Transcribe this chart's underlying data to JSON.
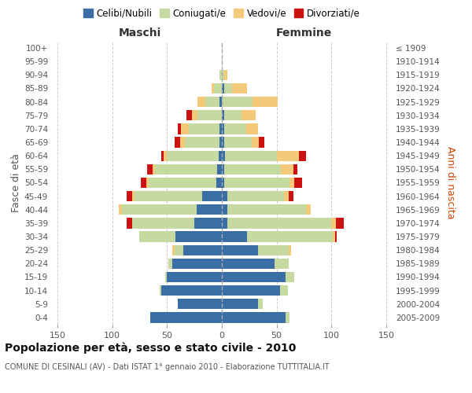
{
  "age_groups": [
    "0-4",
    "5-9",
    "10-14",
    "15-19",
    "20-24",
    "25-29",
    "30-34",
    "35-39",
    "40-44",
    "45-49",
    "50-54",
    "55-59",
    "60-64",
    "65-69",
    "70-74",
    "75-79",
    "80-84",
    "85-89",
    "90-94",
    "95-99",
    "100+"
  ],
  "birth_years": [
    "2005-2009",
    "2000-2004",
    "1995-1999",
    "1990-1994",
    "1985-1989",
    "1980-1984",
    "1975-1979",
    "1970-1974",
    "1965-1969",
    "1960-1964",
    "1955-1959",
    "1950-1954",
    "1945-1949",
    "1940-1944",
    "1935-1939",
    "1930-1934",
    "1925-1929",
    "1920-1924",
    "1915-1919",
    "1910-1914",
    "≤ 1909"
  ],
  "males": {
    "celibe": [
      65,
      40,
      55,
      50,
      45,
      35,
      42,
      25,
      23,
      18,
      5,
      4,
      3,
      2,
      2,
      0,
      2,
      0,
      0,
      0,
      0
    ],
    "coniugato": [
      0,
      0,
      2,
      2,
      4,
      8,
      33,
      57,
      68,
      62,
      62,
      57,
      47,
      32,
      28,
      22,
      13,
      7,
      2,
      0,
      0
    ],
    "vedovo": [
      0,
      0,
      0,
      0,
      0,
      2,
      0,
      0,
      3,
      2,
      2,
      2,
      3,
      4,
      7,
      5,
      7,
      2,
      0,
      0,
      0
    ],
    "divorziato": [
      0,
      0,
      0,
      0,
      0,
      0,
      0,
      5,
      0,
      5,
      5,
      5,
      2,
      5,
      3,
      5,
      0,
      0,
      0,
      0,
      0
    ]
  },
  "females": {
    "nubile": [
      58,
      33,
      53,
      58,
      48,
      33,
      23,
      5,
      5,
      5,
      2,
      2,
      3,
      2,
      2,
      2,
      0,
      2,
      0,
      0,
      0
    ],
    "coniugata": [
      4,
      4,
      7,
      8,
      13,
      28,
      78,
      95,
      72,
      52,
      60,
      52,
      47,
      25,
      20,
      16,
      28,
      7,
      2,
      0,
      0
    ],
    "vedova": [
      0,
      0,
      0,
      0,
      0,
      2,
      2,
      4,
      4,
      4,
      4,
      11,
      20,
      7,
      11,
      13,
      23,
      14,
      3,
      0,
      0
    ],
    "divorziata": [
      0,
      0,
      0,
      0,
      0,
      0,
      2,
      7,
      0,
      4,
      7,
      4,
      7,
      5,
      0,
      0,
      0,
      0,
      0,
      0,
      0
    ]
  },
  "colors": {
    "celibe": "#3A6EA5",
    "coniugato": "#C5D9A0",
    "vedovo": "#F5C97A",
    "divorziato": "#CC1111"
  },
  "xlim": 155,
  "title": "Popolazione per età, sesso e stato civile - 2010",
  "subtitle": "COMUNE DI CESINALI (AV) - Dati ISTAT 1° gennaio 2010 - Elaborazione TUTTITALIA.IT",
  "legend_labels": [
    "Celibi/Nubili",
    "Coniugati/e",
    "Vedovi/e",
    "Divorziati/e"
  ],
  "ylabel_left": "Fasce di età",
  "ylabel_right": "Anni di nascita",
  "xlabel_male": "Maschi",
  "xlabel_female": "Femmine",
  "bg_color": "#FFFFFF",
  "grid_color": "#CCCCCC"
}
